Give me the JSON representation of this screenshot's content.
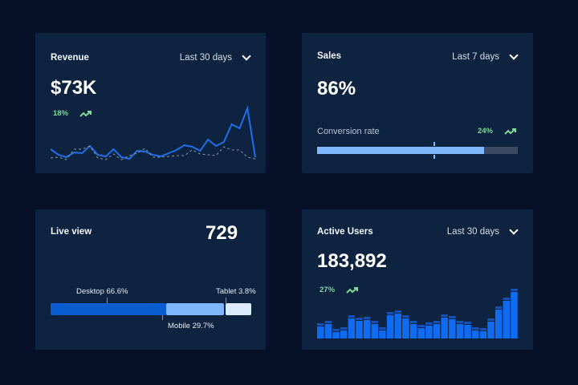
{
  "colors": {
    "background": "#061029",
    "card": "#0d2340",
    "accent": "#1f6fe8",
    "positive": "#7fd99a"
  },
  "revenue": {
    "title": "Revenue",
    "range": "Last 30 days",
    "value": "$73K",
    "change": "18%",
    "trend_icon": "trend-up-icon",
    "chart_data": {
      "type": "line",
      "series": [
        {
          "values": [
            18,
            11,
            8,
            14,
            13,
            22,
            11,
            9,
            18,
            8,
            6,
            16,
            15,
            11,
            9,
            13,
            17,
            23,
            21,
            16,
            30,
            22,
            27,
            49,
            44,
            69,
            8
          ]
        },
        {
          "values": [
            7,
            8,
            5,
            18,
            18,
            22,
            7,
            5,
            12,
            5,
            10,
            13,
            19,
            8,
            8,
            9,
            10,
            10,
            17,
            12,
            11,
            10,
            21,
            17,
            17,
            8,
            6
          ]
        }
      ]
    }
  },
  "sales": {
    "title": "Sales",
    "range": "Last 7 days",
    "value": "86%",
    "conversion_label": "Conversion rate",
    "change": "24%",
    "progress": 0.83,
    "target": 0.58
  },
  "live": {
    "title": "Live view",
    "value": "729",
    "segments": [
      {
        "label": "Desktop 66.6%",
        "share": 66.6,
        "color": "#0a5cd1"
      },
      {
        "label": "Mobile 29.7%",
        "share": 29.7,
        "color": "#80b6fb"
      },
      {
        "label": "Tablet 3.8%",
        "share": 3.8,
        "color": "#dceafe"
      }
    ]
  },
  "users": {
    "title": "Active Users",
    "range": "Last 30 days",
    "value": "183,892",
    "change": "27%",
    "chart_data": {
      "type": "bar",
      "values": [
        15,
        18,
        8,
        10,
        25,
        22,
        23,
        18,
        10,
        29,
        31,
        25,
        18,
        13,
        16,
        18,
        26,
        24,
        18,
        17,
        10,
        9,
        21,
        36,
        47,
        58
      ]
    }
  }
}
